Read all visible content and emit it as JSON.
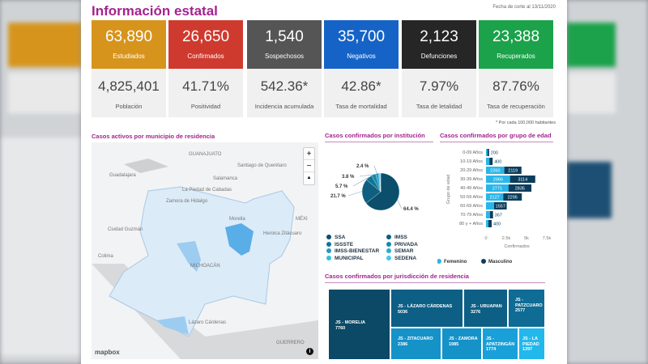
{
  "header": {
    "title": "Información estatal",
    "date": "Fecha de corte al 13/11/2020"
  },
  "cards": [
    {
      "value": "63,890",
      "label": "Estudiados",
      "stat": "4,825,401",
      "stat_label": "Población",
      "color": "#d6941c"
    },
    {
      "value": "26,650",
      "label": "Confirmados",
      "stat": "41.71%",
      "stat_label": "Positividad",
      "color": "#cf3a2f"
    },
    {
      "value": "1,540",
      "label": "Sospechosos",
      "stat": "542.36*",
      "stat_label": "Incidencia acumulada",
      "color": "#555555"
    },
    {
      "value": "35,700",
      "label": "Negativos",
      "stat": "42.86*",
      "stat_label": "Tasa de mortalidad",
      "color": "#1663c7"
    },
    {
      "value": "2,123",
      "label": "Defunciones",
      "stat": "7.97%",
      "stat_label": "Tasa de letalidad",
      "color": "#262626"
    },
    {
      "value": "23,388",
      "label": "Recuperados",
      "stat": "87.76%",
      "stat_label": "Tasa de recuperación",
      "color": "#1ba24a"
    }
  ],
  "note": "* Por cada 100,000 habitantes",
  "map": {
    "title": "Casos activos por municipio de residencia",
    "labels": [
      "GUANAJUATO",
      "Guadalajara",
      "Santiago de Querétaro",
      "Salamanca",
      "La Piedad de Cabadas",
      "Zamora de Hidalgo",
      "Morelia",
      "Ciudad Guzmán",
      "Heroica Zitácuaro",
      "Colima",
      "MICHOACÁN",
      "Lázaro Cárdenas",
      "GUERRERO",
      "MÉXI"
    ],
    "zoom_in": "+",
    "zoom_out": "−",
    "compass": "▲",
    "attribution": "mapbox",
    "info": "i"
  },
  "chart_data": [
    {
      "type": "pie",
      "title": "Casos confirmados por institución",
      "slices": [
        {
          "name": "SSA",
          "value": 64.4,
          "label": "64.4 %",
          "color": "#0b4f6c"
        },
        {
          "name": "IMSS",
          "value": 21.7,
          "label": "21.7 %",
          "color": "#0e5f80"
        },
        {
          "name": "ISSSTE",
          "value": 5.7,
          "label": "5.7 %",
          "color": "#127596"
        },
        {
          "name": "PRIVADA",
          "value": 3.8,
          "label": "3.8 %",
          "color": "#1788ab"
        },
        {
          "name": "IMSS-BIENESTAR",
          "value": 2.4,
          "label": "2.4 %",
          "color": "#1f9cc2"
        },
        {
          "name": "SEMAR",
          "value": 1.0,
          "color": "#28acd3"
        },
        {
          "name": "MUNICIPAL",
          "value": 0.6,
          "color": "#34bde3"
        },
        {
          "name": "SEDENA",
          "value": 0.4,
          "color": "#41c9ef"
        }
      ],
      "legend": [
        "SSA",
        "IMSS",
        "ISSSTE",
        "PRIVADA",
        "IMSS-BIENESTAR",
        "SEMAR",
        "MUNICIPAL",
        "SEDENA"
      ]
    },
    {
      "type": "bar",
      "orientation": "horizontal",
      "stacked": true,
      "title": "Casos confirmados por grupo de edad",
      "ylabel": "Grupo de edad",
      "xlabel": "Confirmados",
      "xlim": [
        0,
        7500
      ],
      "xticks": [
        "0",
        "2.5k",
        "5k",
        "7.5k"
      ],
      "categories": [
        "0-09 Años",
        "10-19 Años",
        "20-29 Años",
        "30-39 Años",
        "40-49 Años",
        "50-59 Años",
        "60-69 Años",
        "70-79 Años",
        "80 y + Años"
      ],
      "series": [
        {
          "name": "Femenino",
          "color": "#29b6e8",
          "values": [
            180,
            420,
            2260,
            2966,
            2771,
            2127,
            1000,
            500,
            300
          ]
        },
        {
          "name": "Masculino",
          "color": "#0b3d5c",
          "values": [
            200,
            400,
            2119,
            3114,
            2835,
            2295,
            1557,
            367,
            400
          ]
        }
      ]
    },
    {
      "type": "treemap",
      "title": "Casos confirmados por jurisdicción de residencia",
      "items": [
        {
          "name": "JS - MORELIA",
          "value": 7760
        },
        {
          "name": "JS - LÁZARO CÁRDENAS",
          "value": 5036
        },
        {
          "name": "JS - URUAPAN",
          "value": 3276
        },
        {
          "name": "JS - PATZCUARO",
          "value": 2577
        },
        {
          "name": "JS - ZITACUARO",
          "value": 2386
        },
        {
          "name": "JS - ZAMORA",
          "value": 1985
        },
        {
          "name": "JS - APATZINGÁN",
          "value": 1774
        },
        {
          "name": "JS - LA PIEDAD",
          "value": 1397
        }
      ]
    }
  ]
}
